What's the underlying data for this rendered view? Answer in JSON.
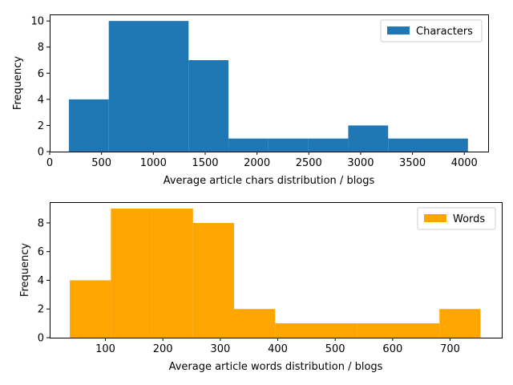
{
  "chart_data": [
    {
      "type": "bar",
      "subtype": "histogram",
      "xlabel": "Average article chars distribution / blogs",
      "ylabel": "Frequency",
      "xlim": [
        0,
        4230
      ],
      "ylim": [
        0,
        10.5
      ],
      "xticks": [
        0,
        500,
        1000,
        1500,
        2000,
        2500,
        3000,
        3500,
        4000
      ],
      "yticks": [
        0,
        2,
        4,
        6,
        8,
        10
      ],
      "bins": [
        {
          "x0": 185,
          "x1": 570,
          "value": 4
        },
        {
          "x0": 570,
          "x1": 955,
          "value": 10
        },
        {
          "x0": 955,
          "x1": 1340,
          "value": 10
        },
        {
          "x0": 1340,
          "x1": 1725,
          "value": 7
        },
        {
          "x0": 1725,
          "x1": 2110,
          "value": 1
        },
        {
          "x0": 2110,
          "x1": 2495,
          "value": 1
        },
        {
          "x0": 2495,
          "x1": 2880,
          "value": 1
        },
        {
          "x0": 2880,
          "x1": 3265,
          "value": 2
        },
        {
          "x0": 3265,
          "x1": 3650,
          "value": 1
        },
        {
          "x0": 3650,
          "x1": 4035,
          "value": 1
        }
      ],
      "series_name": "Characters",
      "color": "#1f77b4",
      "legend": "top-right"
    },
    {
      "type": "bar",
      "subtype": "histogram",
      "xlabel": "Average article words distribution  / blogs",
      "ylabel": "Frequency",
      "xlim": [
        3,
        790
      ],
      "ylim": [
        0,
        9.45
      ],
      "xticks": [
        100,
        200,
        300,
        400,
        500,
        600,
        700
      ],
      "yticks": [
        0,
        2,
        4,
        6,
        8
      ],
      "bins": [
        {
          "x0": 38,
          "x1": 109.5,
          "value": 4
        },
        {
          "x0": 109.5,
          "x1": 181,
          "value": 9
        },
        {
          "x0": 181,
          "x1": 252.5,
          "value": 9
        },
        {
          "x0": 252.5,
          "x1": 324,
          "value": 8
        },
        {
          "x0": 324,
          "x1": 395.5,
          "value": 2
        },
        {
          "x0": 395.5,
          "x1": 467,
          "value": 1
        },
        {
          "x0": 467,
          "x1": 538.5,
          "value": 1
        },
        {
          "x0": 538.5,
          "x1": 610,
          "value": 1
        },
        {
          "x0": 610,
          "x1": 681.5,
          "value": 1
        },
        {
          "x0": 681.5,
          "x1": 753,
          "value": 2
        }
      ],
      "series_name": "Words",
      "color": "#ffa500",
      "legend": "top-right"
    }
  ]
}
